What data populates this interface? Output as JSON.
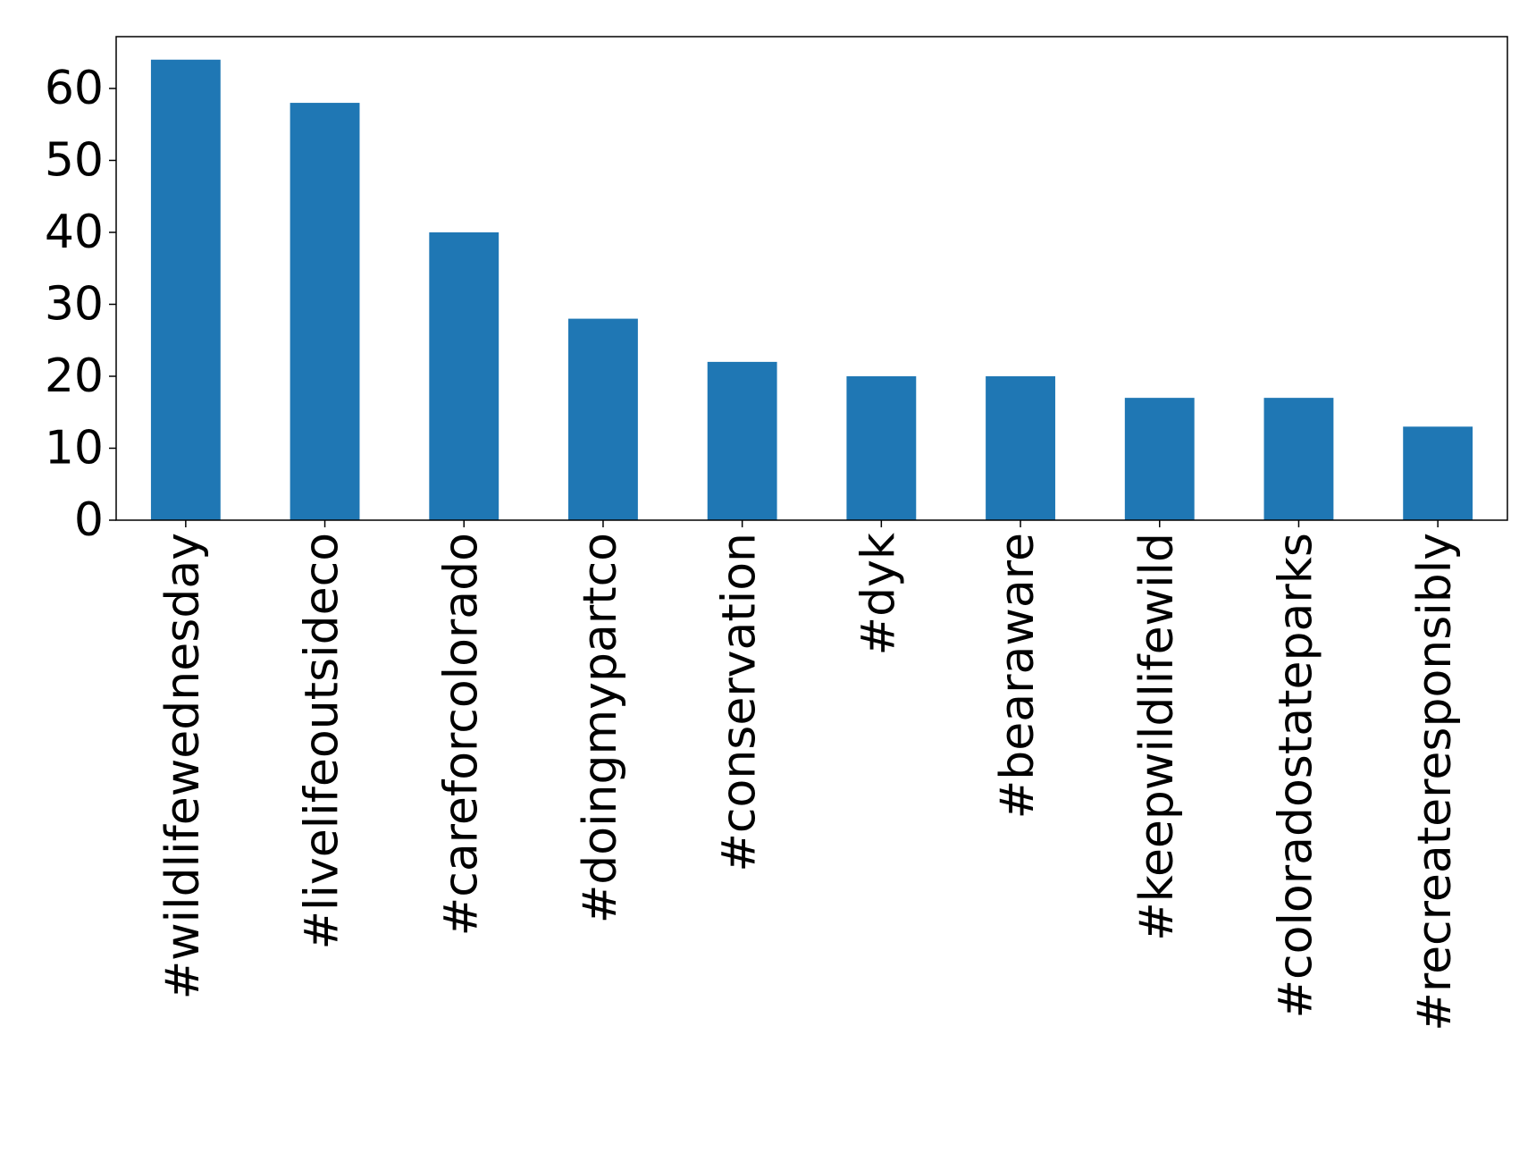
{
  "chart_data": {
    "type": "bar",
    "categories": [
      "#wildlifewednesday",
      "#livelifeoutsideco",
      "#careforcolorado",
      "#doingmypartco",
      "#conservation",
      "#dyk",
      "#bearaware",
      "#keepwildlifewild",
      "#coloradostateparks",
      "#recreateresponsibly"
    ],
    "values": [
      64,
      58,
      40,
      28,
      22,
      20,
      20,
      17,
      17,
      13
    ],
    "color": "#1f77b4",
    "ylim": [
      0,
      67.2
    ],
    "yticks": [
      0,
      10,
      20,
      30,
      40,
      50,
      60
    ],
    "grid": false
  }
}
